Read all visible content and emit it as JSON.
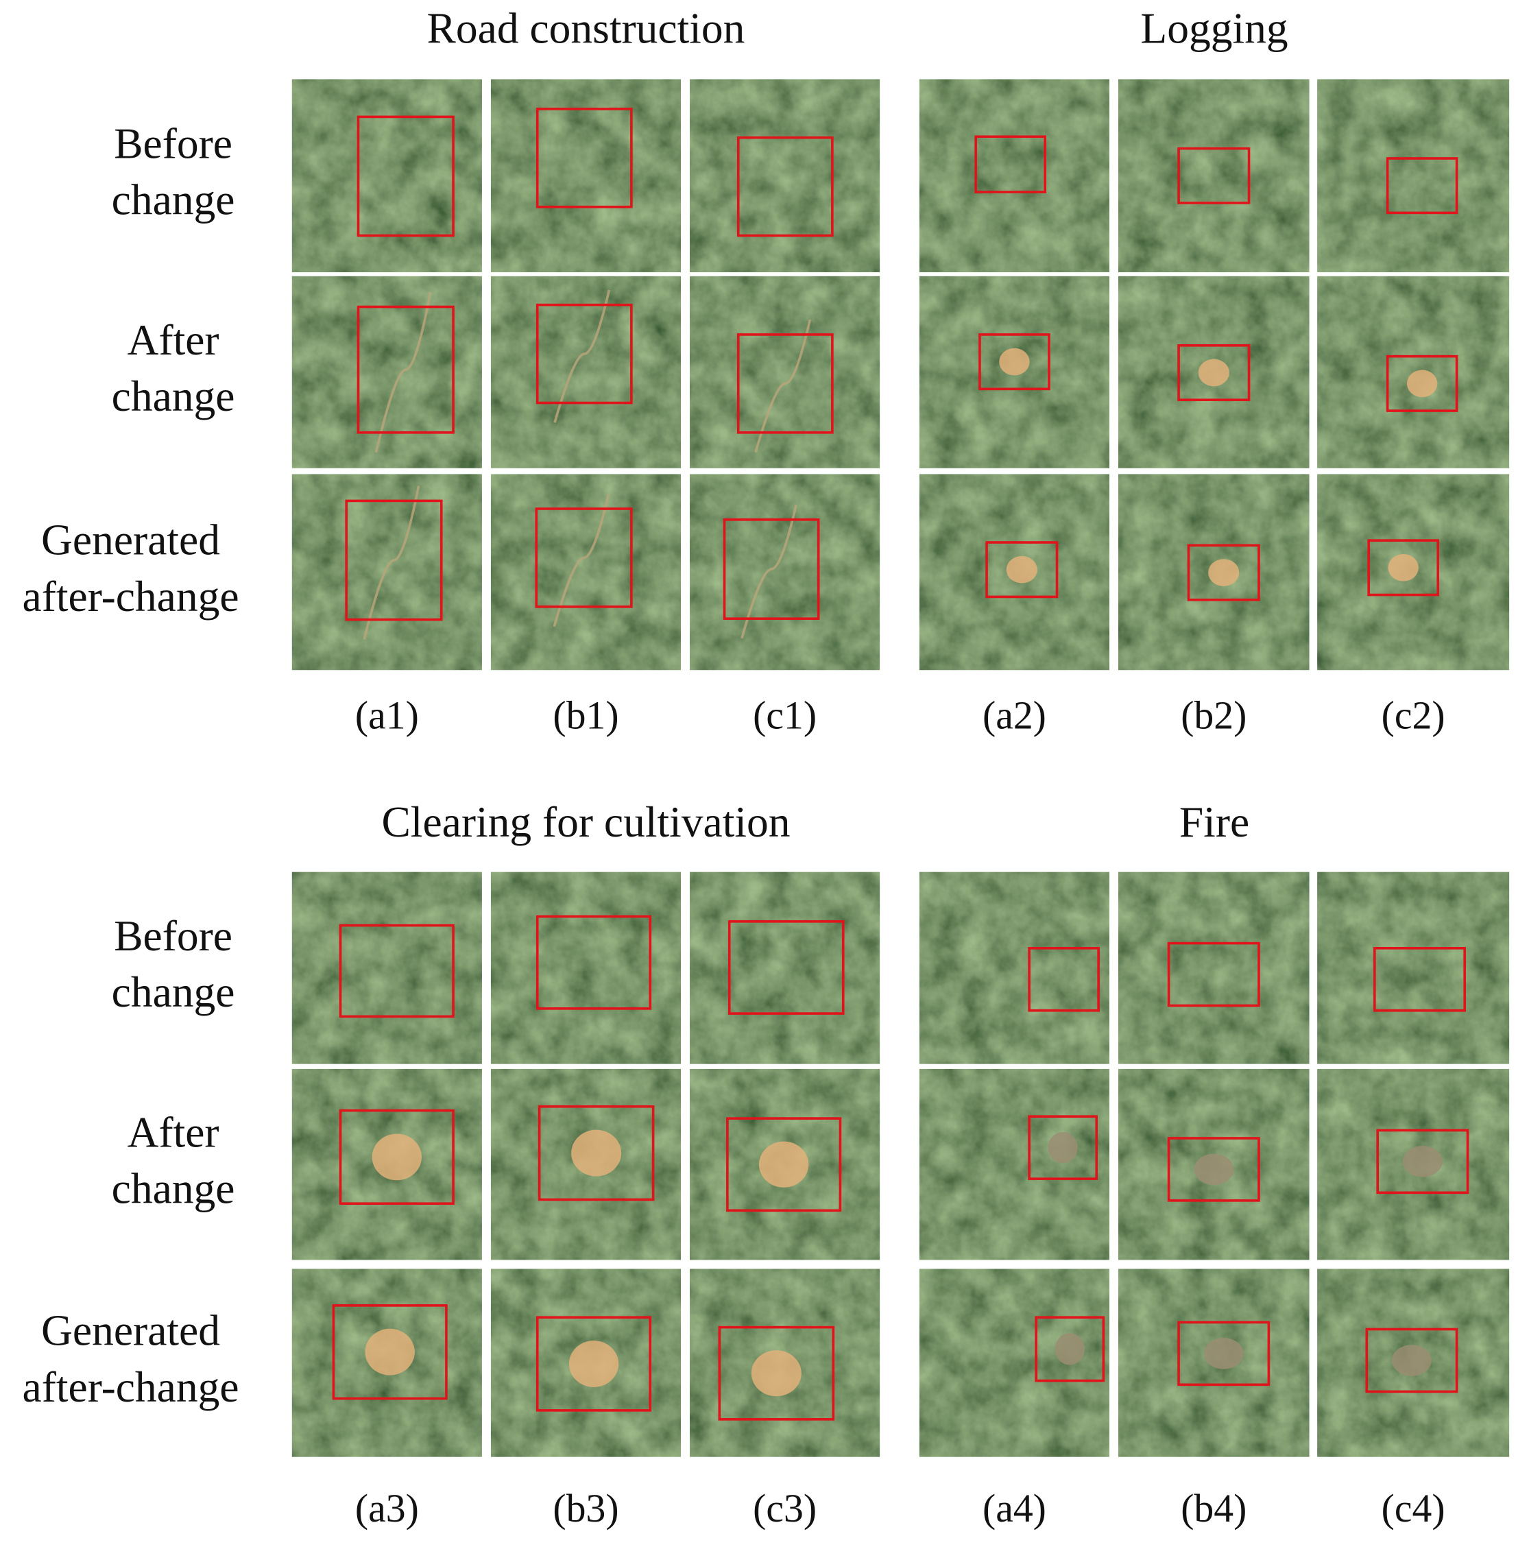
{
  "sections": [
    {
      "row_labels": [
        [
          "Before",
          "change"
        ],
        [
          "After",
          "change"
        ],
        [
          "Generated",
          "after-change"
        ]
      ],
      "panels": [
        {
          "title": "Road construction",
          "columns": [
            "(a1)",
            "(b1)",
            "(c1)"
          ]
        },
        {
          "title": "Logging",
          "columns": [
            "(a2)",
            "(b2)",
            "(c2)"
          ]
        }
      ]
    },
    {
      "row_labels": [
        [
          "Before",
          "change"
        ],
        [
          "After",
          "change"
        ],
        [
          "Generated",
          "after-change"
        ]
      ],
      "panels": [
        {
          "title": "Clearing for cultivation",
          "columns": [
            "(a3)",
            "(b3)",
            "(c3)"
          ]
        },
        {
          "title": "Fire",
          "columns": [
            "(a4)",
            "(b4)",
            "(c4)"
          ]
        }
      ]
    }
  ]
}
